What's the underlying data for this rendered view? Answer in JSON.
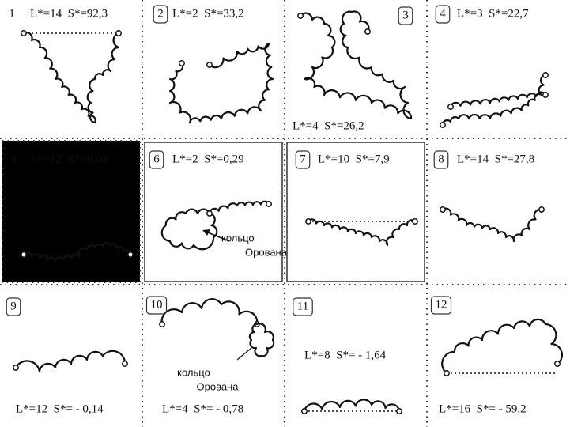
{
  "panels": [
    {
      "number": "1",
      "label": "L*=14  S*=92,3"
    },
    {
      "number": "2",
      "label": "L*=2  S*=33,2"
    },
    {
      "number": "3",
      "label": "L*=4  S*=26,2"
    },
    {
      "number": "4",
      "label": "L*=3  S*=22,7"
    },
    {
      "number": "5",
      "label": "L*=12  S*=0,02"
    },
    {
      "number": "6",
      "label": "L*=2  S*=0,29",
      "annotation": [
        "кольцо",
        "Орована"
      ]
    },
    {
      "number": "7",
      "label": "L*=10  S*=7,9"
    },
    {
      "number": "8",
      "label": "L*=14  S*=27,8"
    },
    {
      "number": "9",
      "label": "L*=12  S*= - 0,14"
    },
    {
      "number": "10",
      "label": "L*=4  S*= - 0,78",
      "annotation": [
        "кольцо",
        "Орована"
      ]
    },
    {
      "number": "11",
      "label": "L*=8  S*= - 1,64"
    },
    {
      "number": "12",
      "label": "L*=16  S*= - 59,2"
    }
  ]
}
